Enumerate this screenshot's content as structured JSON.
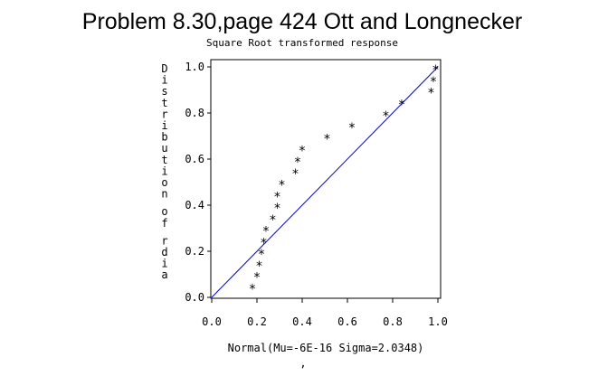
{
  "chart_data": {
    "type": "scatter",
    "title": "Problem 8.30,page 424 Ott and Longnecker",
    "subtitle": "Square Root transformed response",
    "xlabel": "Normal(Mu=-6E-16 Sigma=2.0348)",
    "ylabel": "Distribution of rdia",
    "footnote": ",",
    "xlim": [
      0,
      1
    ],
    "ylim": [
      0,
      1
    ],
    "xticks": [
      "0.0",
      "0.2",
      "0.4",
      "0.6",
      "0.8",
      "1.0"
    ],
    "yticks": [
      "0.0",
      "0.2",
      "0.4",
      "0.6",
      "0.8",
      "1.0"
    ],
    "marker": "*",
    "grid": false,
    "series": [
      {
        "points": [
          {
            "x": 0.18,
            "y": 0.05
          },
          {
            "x": 0.2,
            "y": 0.1
          },
          {
            "x": 0.21,
            "y": 0.15
          },
          {
            "x": 0.22,
            "y": 0.2
          },
          {
            "x": 0.23,
            "y": 0.25
          },
          {
            "x": 0.24,
            "y": 0.3
          },
          {
            "x": 0.27,
            "y": 0.35
          },
          {
            "x": 0.29,
            "y": 0.4
          },
          {
            "x": 0.29,
            "y": 0.45
          },
          {
            "x": 0.31,
            "y": 0.5
          },
          {
            "x": 0.37,
            "y": 0.55
          },
          {
            "x": 0.38,
            "y": 0.6
          },
          {
            "x": 0.4,
            "y": 0.65
          },
          {
            "x": 0.51,
            "y": 0.7
          },
          {
            "x": 0.62,
            "y": 0.75
          },
          {
            "x": 0.77,
            "y": 0.8
          },
          {
            "x": 0.84,
            "y": 0.85
          },
          {
            "x": 0.97,
            "y": 0.9
          },
          {
            "x": 0.98,
            "y": 0.95
          },
          {
            "x": 0.99,
            "y": 1.0
          }
        ]
      }
    ],
    "reference_line": {
      "x": [
        0,
        1
      ],
      "y": [
        0,
        1
      ],
      "color": "#0000cc"
    }
  }
}
